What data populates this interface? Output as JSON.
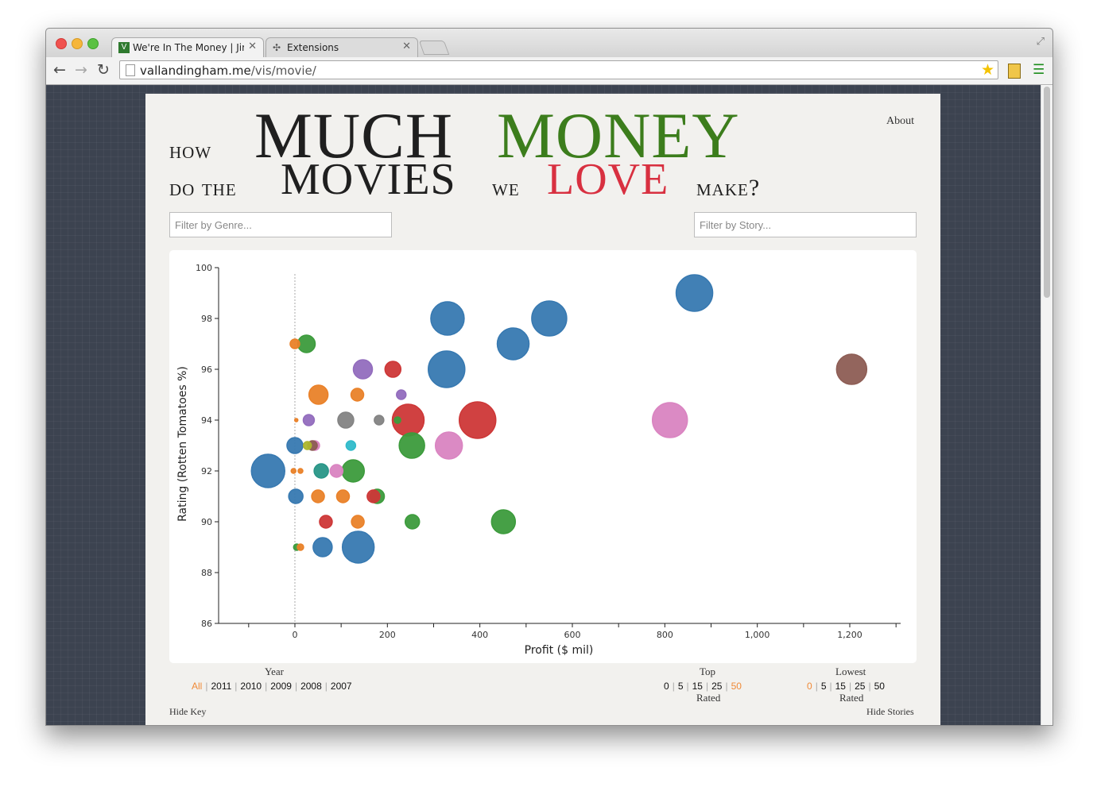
{
  "browser": {
    "tabs": [
      {
        "title": "We're In The Money | Jim V",
        "favicon": "V"
      },
      {
        "title": "Extensions",
        "favicon": "puzzle-icon"
      }
    ],
    "url_host": "vallandingham.me",
    "url_path": "/vis/movie/"
  },
  "page": {
    "about_label": "About",
    "title": {
      "w1": "how",
      "w2": "MUCH",
      "w3": "MONEY",
      "w4": "do the",
      "w5": "MOVIES",
      "w6": "we",
      "w7": "LOVE",
      "w8": "make?"
    },
    "colors": {
      "green": "#3c7d1c",
      "red": "#d83040",
      "accent": "#f08a37"
    },
    "genre_placeholder": "Filter by Genre...",
    "story_placeholder": "Filter by Story...",
    "year": {
      "title": "Year",
      "options": [
        "All",
        "2011",
        "2010",
        "2009",
        "2008",
        "2007"
      ],
      "active": "All"
    },
    "top": {
      "title": "Top",
      "options": [
        "0",
        "5",
        "15",
        "25",
        "50"
      ],
      "active": "50",
      "subtitle": "Rated"
    },
    "lowest": {
      "title": "Lowest",
      "options": [
        "0",
        "5",
        "15",
        "25",
        "50"
      ],
      "active": "0",
      "subtitle": "Rated"
    },
    "hide_key": "Hide Key",
    "hide_stories": "Hide Stories"
  },
  "chart_data": {
    "type": "scatter",
    "xlabel": "Profit ($ mil)",
    "ylabel": "Rating (Rotten Tomatoes %)",
    "xlim": [
      -165,
      1310
    ],
    "ylim": [
      86,
      100
    ],
    "x_ticks": [
      "0",
      "200",
      "400",
      "600",
      "800",
      "1,000",
      "1,200"
    ],
    "x_tick_values": [
      0,
      200,
      400,
      600,
      800,
      1000,
      1200
    ],
    "y_ticks": [
      "86",
      "88",
      "90",
      "92",
      "94",
      "96",
      "98",
      "100"
    ],
    "y_tick_values": [
      86,
      88,
      90,
      92,
      94,
      96,
      98,
      100
    ],
    "zero_line": true,
    "colors": {
      "blue": "#3a7fba",
      "green": "#3fa33f",
      "orange": "#f6882b",
      "red": "#d83a3a",
      "purple": "#9a72c7",
      "gray": "#8a8a8a",
      "pink": "#e58bcb",
      "brown": "#956259",
      "cyan": "#33c4d5",
      "teal": "#2a9d8e",
      "olive": "#b5c030"
    },
    "points": [
      {
        "x": 864,
        "y": 99,
        "s": 23,
        "c": "blue"
      },
      {
        "x": 330,
        "y": 98,
        "s": 21,
        "c": "blue"
      },
      {
        "x": 550,
        "y": 98,
        "s": 22,
        "c": "blue"
      },
      {
        "x": 472,
        "y": 97,
        "s": 20,
        "c": "blue"
      },
      {
        "x": 328,
        "y": 96,
        "s": 23,
        "c": "blue"
      },
      {
        "x": 1204,
        "y": 96,
        "s": 19,
        "c": "brown"
      },
      {
        "x": 811,
        "y": 94,
        "s": 22,
        "c": "pink"
      },
      {
        "x": 395,
        "y": 94,
        "s": 23,
        "c": "red"
      },
      {
        "x": 245,
        "y": 94,
        "s": 20,
        "c": "red"
      },
      {
        "x": 333,
        "y": 93,
        "s": 17,
        "c": "pink"
      },
      {
        "x": 253,
        "y": 93,
        "s": 16,
        "c": "green"
      },
      {
        "x": -58,
        "y": 92,
        "s": 21,
        "c": "blue"
      },
      {
        "x": 137,
        "y": 89,
        "s": 20,
        "c": "blue"
      },
      {
        "x": 451,
        "y": 90,
        "s": 15,
        "c": "green"
      },
      {
        "x": 25,
        "y": 97,
        "s": 11,
        "c": "green"
      },
      {
        "x": 0,
        "y": 97,
        "s": 6,
        "c": "orange"
      },
      {
        "x": 147,
        "y": 96,
        "s": 12,
        "c": "purple"
      },
      {
        "x": 212,
        "y": 96,
        "s": 10,
        "c": "red"
      },
      {
        "x": 51,
        "y": 95,
        "s": 12,
        "c": "orange"
      },
      {
        "x": 135,
        "y": 95,
        "s": 8,
        "c": "orange"
      },
      {
        "x": 230,
        "y": 95,
        "s": 6,
        "c": "purple"
      },
      {
        "x": 110,
        "y": 94,
        "s": 10,
        "c": "gray"
      },
      {
        "x": 182,
        "y": 94,
        "s": 6,
        "c": "gray"
      },
      {
        "x": 30,
        "y": 94,
        "s": 7,
        "c": "purple"
      },
      {
        "x": 3,
        "y": 94,
        "s": 2,
        "c": "orange"
      },
      {
        "x": 222,
        "y": 94,
        "s": 4,
        "c": "green"
      },
      {
        "x": 0,
        "y": 93,
        "s": 10,
        "c": "blue"
      },
      {
        "x": 27,
        "y": 93,
        "s": 5,
        "c": "olive"
      },
      {
        "x": 43,
        "y": 93,
        "s": 6,
        "c": "pink"
      },
      {
        "x": 38,
        "y": 93,
        "s": 6,
        "c": "brown"
      },
      {
        "x": 121,
        "y": 93,
        "s": 6,
        "c": "cyan"
      },
      {
        "x": 57,
        "y": 92,
        "s": 9,
        "c": "teal"
      },
      {
        "x": 90,
        "y": 92,
        "s": 8,
        "c": "pink"
      },
      {
        "x": 126,
        "y": 92,
        "s": 14,
        "c": "green"
      },
      {
        "x": -3,
        "y": 92,
        "s": 3,
        "c": "orange"
      },
      {
        "x": 12,
        "y": 92,
        "s": 3,
        "c": "orange"
      },
      {
        "x": 2,
        "y": 91,
        "s": 9,
        "c": "blue"
      },
      {
        "x": 50,
        "y": 91,
        "s": 8,
        "c": "orange"
      },
      {
        "x": 104,
        "y": 91,
        "s": 8,
        "c": "orange"
      },
      {
        "x": 170,
        "y": 91,
        "s": 8,
        "c": "red"
      },
      {
        "x": 178,
        "y": 91,
        "s": 9,
        "c": "green"
      },
      {
        "x": 67,
        "y": 90,
        "s": 8,
        "c": "red"
      },
      {
        "x": 136,
        "y": 90,
        "s": 8,
        "c": "orange"
      },
      {
        "x": 254,
        "y": 90,
        "s": 9,
        "c": "green"
      },
      {
        "x": 60,
        "y": 89,
        "s": 12,
        "c": "blue"
      },
      {
        "x": 4,
        "y": 89,
        "s": 4,
        "c": "green"
      },
      {
        "x": 12,
        "y": 89,
        "s": 4,
        "c": "orange"
      }
    ]
  }
}
